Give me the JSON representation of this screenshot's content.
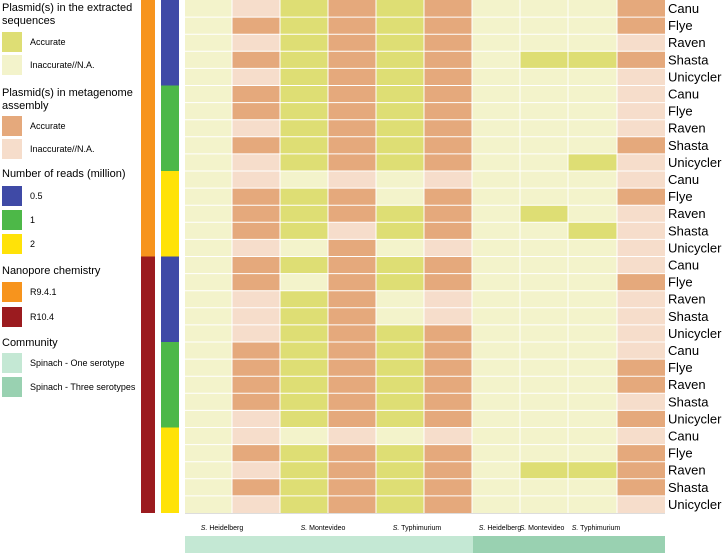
{
  "legend": {
    "extracted": {
      "title_line1": "Plasmid(s) in the extracted",
      "title_line2": "sequences",
      "accurate_label": "Accurate",
      "accurate_color": "#dede74",
      "inaccurate_label": "Inaccurate//N.A.",
      "inaccurate_color": "#f3f3cb"
    },
    "metagenome": {
      "title_line1": "Plasmid(s) in metagenome",
      "title_line2": "assembly",
      "accurate_label": "Accurate",
      "accurate_color": "#e5a97c",
      "inaccurate_label": "Inaccurate//N.A.",
      "inaccurate_color": "#f6ddcb"
    },
    "reads": {
      "title": "Number of reads (million)",
      "items": [
        {
          "label": "0.5",
          "color": "#3f4aa6"
        },
        {
          "label": "1",
          "color": "#4db848"
        },
        {
          "label": "2",
          "color": "#ffe208"
        }
      ]
    },
    "chemistry": {
      "title": "Nanopore chemistry",
      "items": [
        {
          "label": "R9.4.1",
          "color": "#f7941d"
        },
        {
          "label": "R10.4",
          "color": "#9b1b1f"
        }
      ]
    },
    "community": {
      "title": "Community",
      "items": [
        {
          "label": "Spinach - One serotype",
          "color": "#c4e8d4"
        },
        {
          "label": "Spinach - Three serotypes",
          "color": "#99d1b1"
        }
      ]
    }
  },
  "chart_data": {
    "type": "heatmap",
    "title": "",
    "assemblers": [
      "Canu",
      "Flye",
      "Raven",
      "Shasta",
      "Unicycler"
    ],
    "row_labels": [
      "Canu",
      "Flye",
      "Raven",
      "Shasta",
      "Unicycler",
      "Canu",
      "Flye",
      "Raven",
      "Shasta",
      "Unicycler",
      "Canu",
      "Flye",
      "Raven",
      "Shasta",
      "Unicycler",
      "Canu",
      "Flye",
      "Raven",
      "Shasta",
      "Unicycler",
      "Canu",
      "Flye",
      "Raven",
      "Shasta",
      "Unicycler",
      "Canu",
      "Flye",
      "Raven",
      "Shasta",
      "Unicycler"
    ],
    "chemistry_groups": [
      {
        "label": "R9.4.1",
        "rows": 15
      },
      {
        "label": "R10.4",
        "rows": 15
      }
    ],
    "reads_groups": [
      {
        "label": "0.5",
        "rows": 5
      },
      {
        "label": "1",
        "rows": 5
      },
      {
        "label": "2",
        "rows": 5
      },
      {
        "label": "0.5",
        "rows": 5
      },
      {
        "label": "1",
        "rows": 5
      },
      {
        "label": "2",
        "rows": 5
      }
    ],
    "column_labels": [
      {
        "genus": "S.",
        "name": " Heidelberg"
      },
      {
        "genus": "S.",
        "name": " Montevideo"
      },
      {
        "genus": "S.",
        "name": " Typhimurium"
      },
      {
        "genus": "S.",
        "name": " Heidelberg"
      },
      {
        "genus": "S.",
        "name": " Montevideo"
      },
      {
        "genus": "S.",
        "name": " Typhimurium"
      }
    ],
    "column_groups": [
      {
        "label": "Spinach - One serotype",
        "columns": 3
      },
      {
        "label": "Spinach - Three serotypes",
        "columns": 3
      }
    ],
    "cell_types": [
      "extracted",
      "metagenome",
      "extracted",
      "metagenome",
      "extracted",
      "metagenome",
      "extracted",
      "extracted",
      "extracted",
      "metagenome"
    ],
    "value_legend": {
      "A": "Accurate",
      "I": "Inaccurate//N.A."
    },
    "matrix": [
      [
        "I",
        "I",
        "A",
        "A",
        "A",
        "A",
        "I",
        "I",
        "I",
        "A"
      ],
      [
        "I",
        "A",
        "A",
        "A",
        "A",
        "A",
        "I",
        "I",
        "I",
        "A"
      ],
      [
        "I",
        "I",
        "A",
        "A",
        "A",
        "A",
        "I",
        "I",
        "I",
        "I"
      ],
      [
        "I",
        "A",
        "A",
        "A",
        "A",
        "A",
        "I",
        "A",
        "A",
        "A"
      ],
      [
        "I",
        "I",
        "A",
        "A",
        "A",
        "A",
        "I",
        "I",
        "I",
        "I"
      ],
      [
        "I",
        "A",
        "A",
        "A",
        "A",
        "A",
        "I",
        "I",
        "I",
        "I"
      ],
      [
        "I",
        "A",
        "A",
        "A",
        "A",
        "A",
        "I",
        "I",
        "I",
        "I"
      ],
      [
        "I",
        "I",
        "A",
        "A",
        "A",
        "A",
        "I",
        "I",
        "I",
        "I"
      ],
      [
        "I",
        "A",
        "A",
        "A",
        "A",
        "A",
        "I",
        "I",
        "I",
        "A"
      ],
      [
        "I",
        "I",
        "A",
        "A",
        "A",
        "A",
        "I",
        "I",
        "A",
        "I"
      ],
      [
        "I",
        "I",
        "I",
        "I",
        "I",
        "I",
        "I",
        "I",
        "I",
        "I"
      ],
      [
        "I",
        "A",
        "A",
        "A",
        "I",
        "A",
        "I",
        "I",
        "I",
        "A"
      ],
      [
        "I",
        "A",
        "A",
        "A",
        "A",
        "A",
        "I",
        "A",
        "I",
        "I"
      ],
      [
        "I",
        "A",
        "A",
        "I",
        "A",
        "A",
        "I",
        "I",
        "A",
        "I"
      ],
      [
        "I",
        "I",
        "I",
        "A",
        "I",
        "I",
        "I",
        "I",
        "I",
        "I"
      ],
      [
        "I",
        "A",
        "A",
        "A",
        "A",
        "A",
        "I",
        "I",
        "I",
        "I"
      ],
      [
        "I",
        "A",
        "I",
        "A",
        "A",
        "A",
        "I",
        "I",
        "I",
        "A"
      ],
      [
        "I",
        "I",
        "A",
        "A",
        "I",
        "I",
        "I",
        "I",
        "I",
        "I"
      ],
      [
        "I",
        "I",
        "A",
        "A",
        "I",
        "I",
        "I",
        "I",
        "I",
        "I"
      ],
      [
        "I",
        "I",
        "A",
        "A",
        "A",
        "A",
        "I",
        "I",
        "I",
        "I"
      ],
      [
        "I",
        "A",
        "A",
        "A",
        "A",
        "A",
        "I",
        "I",
        "I",
        "I"
      ],
      [
        "I",
        "A",
        "A",
        "A",
        "A",
        "A",
        "I",
        "I",
        "I",
        "A"
      ],
      [
        "I",
        "A",
        "A",
        "A",
        "A",
        "A",
        "I",
        "I",
        "I",
        "A"
      ],
      [
        "I",
        "A",
        "A",
        "A",
        "A",
        "A",
        "I",
        "I",
        "I",
        "I"
      ],
      [
        "I",
        "I",
        "A",
        "A",
        "A",
        "A",
        "I",
        "I",
        "I",
        "A"
      ],
      [
        "I",
        "I",
        "I",
        "I",
        "I",
        "I",
        "I",
        "I",
        "I",
        "I"
      ],
      [
        "I",
        "A",
        "A",
        "A",
        "A",
        "A",
        "I",
        "I",
        "I",
        "A"
      ],
      [
        "I",
        "I",
        "A",
        "A",
        "A",
        "A",
        "I",
        "A",
        "A",
        "A"
      ],
      [
        "I",
        "A",
        "A",
        "A",
        "A",
        "A",
        "I",
        "I",
        "I",
        "A"
      ],
      [
        "I",
        "I",
        "A",
        "A",
        "A",
        "A",
        "I",
        "I",
        "I",
        "I"
      ]
    ]
  }
}
